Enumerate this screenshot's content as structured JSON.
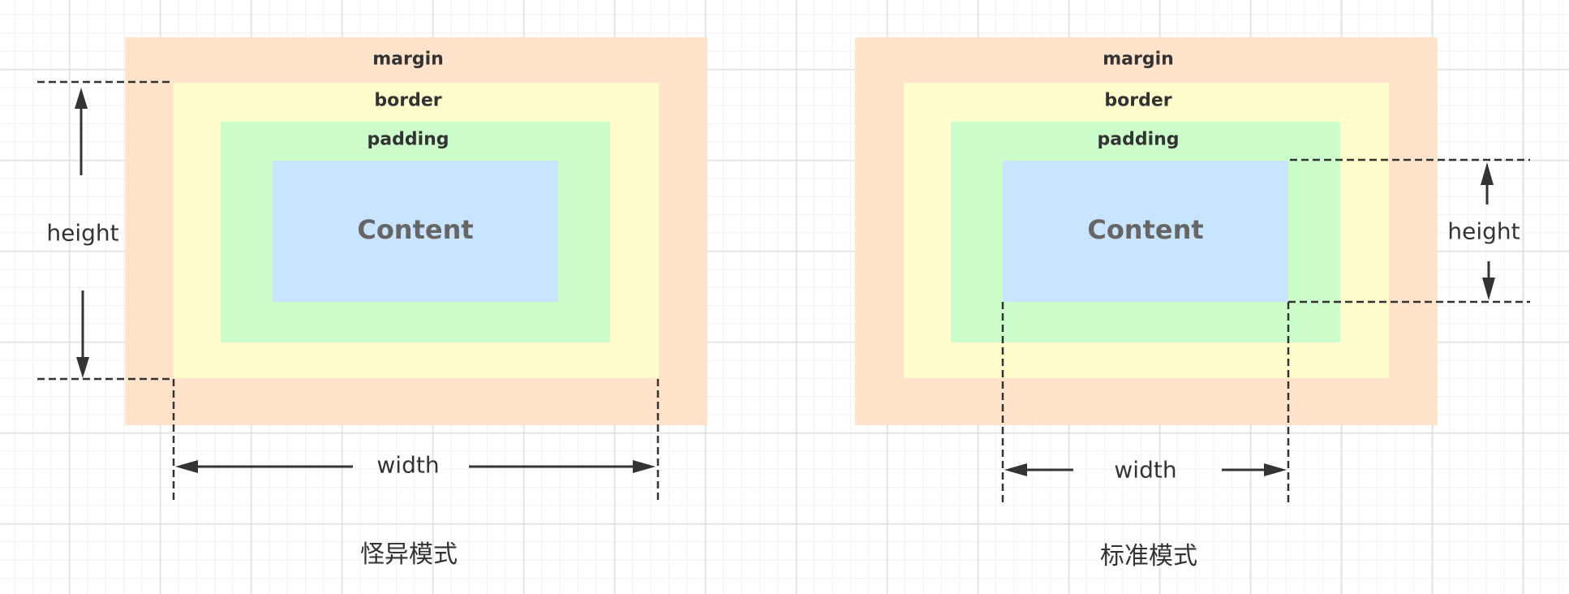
{
  "colors": {
    "margin": "#ffe4cb",
    "border": "#fffdcb",
    "padding": "#cbfecb",
    "content": "#c9e4fd"
  },
  "quirks_mode": {
    "margin_label": "margin",
    "border_label": "border",
    "padding_label": "padding",
    "content_label": "Content",
    "height_label": "height",
    "width_label": "width",
    "caption": "怪异模式"
  },
  "standard_mode": {
    "margin_label": "margin",
    "border_label": "border",
    "padding_label": "padding",
    "content_label": "Content",
    "height_label": "height",
    "width_label": "width",
    "caption": "标准模式"
  }
}
